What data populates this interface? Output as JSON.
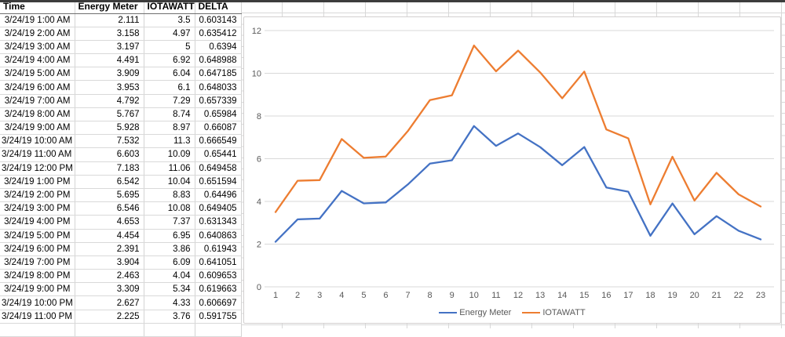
{
  "table": {
    "columns": [
      "Time",
      "Energy Meter",
      "IOTAWATT",
      "DELTA"
    ],
    "rows": [
      [
        "3/24/19 1:00 AM",
        "2.111",
        "3.5",
        "0.603143"
      ],
      [
        "3/24/19 2:00 AM",
        "3.158",
        "4.97",
        "0.635412"
      ],
      [
        "3/24/19 3:00 AM",
        "3.197",
        "5",
        "0.6394"
      ],
      [
        "3/24/19 4:00 AM",
        "4.491",
        "6.92",
        "0.648988"
      ],
      [
        "3/24/19 5:00 AM",
        "3.909",
        "6.04",
        "0.647185"
      ],
      [
        "3/24/19 6:00 AM",
        "3.953",
        "6.1",
        "0.648033"
      ],
      [
        "3/24/19 7:00 AM",
        "4.792",
        "7.29",
        "0.657339"
      ],
      [
        "3/24/19 8:00 AM",
        "5.767",
        "8.74",
        "0.65984"
      ],
      [
        "3/24/19 9:00 AM",
        "5.928",
        "8.97",
        "0.66087"
      ],
      [
        "3/24/19 10:00 AM",
        "7.532",
        "11.3",
        "0.666549"
      ],
      [
        "3/24/19 11:00 AM",
        "6.603",
        "10.09",
        "0.65441"
      ],
      [
        "3/24/19 12:00 PM",
        "7.183",
        "11.06",
        "0.649458"
      ],
      [
        "3/24/19 1:00 PM",
        "6.542",
        "10.04",
        "0.651594"
      ],
      [
        "3/24/19 2:00 PM",
        "5.695",
        "8.83",
        "0.64496"
      ],
      [
        "3/24/19 3:00 PM",
        "6.546",
        "10.08",
        "0.649405"
      ],
      [
        "3/24/19 4:00 PM",
        "4.653",
        "7.37",
        "0.631343"
      ],
      [
        "3/24/19 5:00 PM",
        "4.454",
        "6.95",
        "0.640863"
      ],
      [
        "3/24/19 6:00 PM",
        "2.391",
        "3.86",
        "0.61943"
      ],
      [
        "3/24/19 7:00 PM",
        "3.904",
        "6.09",
        "0.641051"
      ],
      [
        "3/24/19 8:00 PM",
        "2.463",
        "4.04",
        "0.609653"
      ],
      [
        "3/24/19 9:00 PM",
        "3.309",
        "5.34",
        "0.619663"
      ],
      [
        "3/24/19 10:00 PM",
        "2.627",
        "4.33",
        "0.606697"
      ],
      [
        "3/24/19 11:00 PM",
        "2.225",
        "3.76",
        "0.591755"
      ]
    ]
  },
  "chart_data": {
    "type": "line",
    "title": "",
    "x": [
      1,
      2,
      3,
      4,
      5,
      6,
      7,
      8,
      9,
      10,
      11,
      12,
      13,
      14,
      15,
      16,
      17,
      18,
      19,
      20,
      21,
      22,
      23
    ],
    "series": [
      {
        "name": "Energy Meter",
        "color": "#4472C4",
        "values": [
          2.111,
          3.158,
          3.197,
          4.491,
          3.909,
          3.953,
          4.792,
          5.767,
          5.928,
          7.532,
          6.603,
          7.183,
          6.542,
          5.695,
          6.546,
          4.653,
          4.454,
          2.391,
          3.904,
          2.463,
          3.309,
          2.627,
          2.225
        ]
      },
      {
        "name": "IOTAWATT",
        "color": "#ED7D31",
        "values": [
          3.5,
          4.97,
          5,
          6.92,
          6.04,
          6.1,
          7.29,
          8.74,
          8.97,
          11.3,
          10.09,
          11.06,
          10.04,
          8.83,
          10.08,
          7.37,
          6.95,
          3.86,
          6.09,
          4.04,
          5.34,
          4.33,
          3.76
        ]
      }
    ],
    "ylim": [
      0,
      12
    ],
    "yticks": [
      0,
      2,
      4,
      6,
      8,
      10,
      12
    ],
    "grid": true,
    "legend_position": "bottom",
    "axis_text_color": "#595959",
    "gridline_color": "#D9D9D9"
  }
}
